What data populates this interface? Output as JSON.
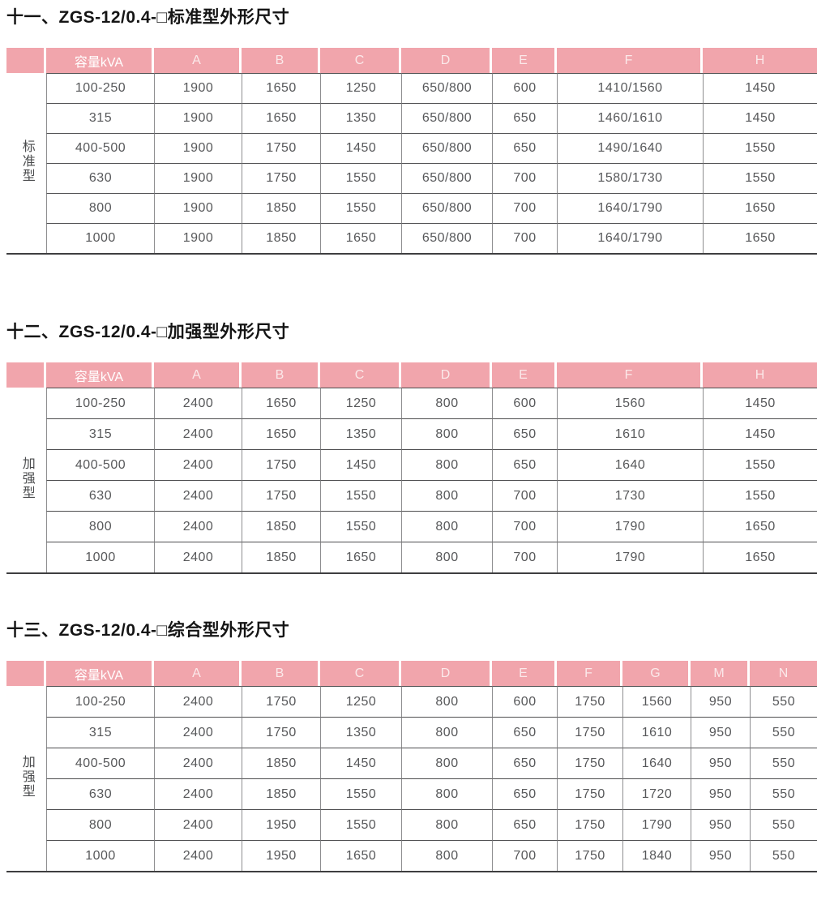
{
  "document": {
    "language": "zh-CN",
    "background": "#ffffff"
  },
  "colors": {
    "header_pink": "#f1a5ac",
    "header_text": "#fbe9ea",
    "data_text": "#57585a",
    "horizontal_rule": "#4e4e50",
    "vertical_rule": "#8e8e90",
    "bottom_rule": "#3e3e40",
    "title_text": "#151515"
  },
  "sections": [
    {
      "title": "十一、ZGS-12/0.4-□标准型外形尺寸",
      "side_label": "标准型",
      "columns": [
        "容量kVA",
        "A",
        "B",
        "C",
        "D",
        "E",
        "F",
        "H"
      ],
      "rows": [
        [
          "100-250",
          "1900",
          "1650",
          "1250",
          "650/800",
          "600",
          "1410/1560",
          "1450"
        ],
        [
          "315",
          "1900",
          "1650",
          "1350",
          "650/800",
          "650",
          "1460/1610",
          "1450"
        ],
        [
          "400-500",
          "1900",
          "1750",
          "1450",
          "650/800",
          "650",
          "1490/1640",
          "1550"
        ],
        [
          "630",
          "1900",
          "1750",
          "1550",
          "650/800",
          "700",
          "1580/1730",
          "1550"
        ],
        [
          "800",
          "1900",
          "1850",
          "1550",
          "650/800",
          "700",
          "1640/1790",
          "1650"
        ],
        [
          "1000",
          "1900",
          "1850",
          "1650",
          "650/800",
          "700",
          "1640/1790",
          "1650"
        ]
      ]
    },
    {
      "title": "十二、ZGS-12/0.4-□加强型外形尺寸",
      "side_label": "加强型",
      "columns": [
        "容量kVA",
        "A",
        "B",
        "C",
        "D",
        "E",
        "F",
        "H"
      ],
      "rows": [
        [
          "100-250",
          "2400",
          "1650",
          "1250",
          "800",
          "600",
          "1560",
          "1450"
        ],
        [
          "315",
          "2400",
          "1650",
          "1350",
          "800",
          "650",
          "1610",
          "1450"
        ],
        [
          "400-500",
          "2400",
          "1750",
          "1450",
          "800",
          "650",
          "1640",
          "1550"
        ],
        [
          "630",
          "2400",
          "1750",
          "1550",
          "800",
          "700",
          "1730",
          "1550"
        ],
        [
          "800",
          "2400",
          "1850",
          "1550",
          "800",
          "700",
          "1790",
          "1650"
        ],
        [
          "1000",
          "2400",
          "1850",
          "1650",
          "800",
          "700",
          "1790",
          "1650"
        ]
      ]
    },
    {
      "title": "十三、ZGS-12/0.4-□综合型外形尺寸",
      "side_label": "加强型",
      "columns": [
        "容量kVA",
        "A",
        "B",
        "C",
        "D",
        "E",
        "F",
        "G",
        "M",
        "N"
      ],
      "rows": [
        [
          "100-250",
          "2400",
          "1750",
          "1250",
          "800",
          "600",
          "1750",
          "1560",
          "950",
          "550"
        ],
        [
          "315",
          "2400",
          "1750",
          "1350",
          "800",
          "650",
          "1750",
          "1610",
          "950",
          "550"
        ],
        [
          "400-500",
          "2400",
          "1850",
          "1450",
          "800",
          "650",
          "1750",
          "1640",
          "950",
          "550"
        ],
        [
          "630",
          "2400",
          "1850",
          "1550",
          "800",
          "650",
          "1750",
          "1720",
          "950",
          "550"
        ],
        [
          "800",
          "2400",
          "1950",
          "1550",
          "800",
          "650",
          "1750",
          "1790",
          "950",
          "550"
        ],
        [
          "1000",
          "2400",
          "1950",
          "1650",
          "800",
          "700",
          "1750",
          "1840",
          "950",
          "550"
        ]
      ]
    }
  ]
}
